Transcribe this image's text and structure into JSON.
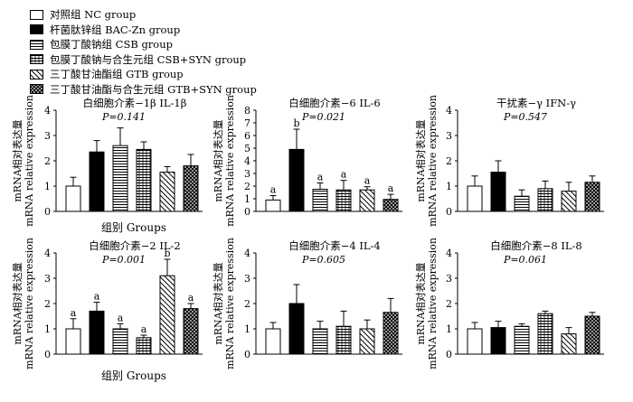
{
  "legend": [
    {
      "label": "对照组  NC group",
      "pattern": "white"
    },
    {
      "label": "杆菌肽锌组  BAC-Zn group",
      "pattern": "black"
    },
    {
      "label": "包膜丁酸钠组  CSB group",
      "pattern": "hlines"
    },
    {
      "label": "包膜丁酸钠与合生元组  CSB+SYN group",
      "pattern": "grid"
    },
    {
      "label": "三丁酸甘油酯组  GTB group",
      "pattern": "diag"
    },
    {
      "label": "三丁酸甘油酯与合生元组  GTB+SYN group",
      "pattern": "dots"
    }
  ],
  "chart_data": [
    {
      "type": "bar",
      "title": "白细胞介素−1β IL-1β",
      "pvalue": "P=0.141",
      "ylabel_cn": "mRNA相对表达量",
      "ylabel_en": "mRNA relative expression",
      "xlabel": "组别 Groups",
      "ylim": [
        0,
        4
      ],
      "ticks": [
        "0",
        "1",
        "2",
        "3",
        "4"
      ],
      "values": [
        1.0,
        2.35,
        2.6,
        2.45,
        1.55,
        1.8
      ],
      "errors": [
        0.35,
        0.45,
        0.7,
        0.3,
        0.22,
        0.45
      ],
      "letters": []
    },
    {
      "type": "bar",
      "title": "白细胞介素−6 IL-6",
      "pvalue": "P=0.021",
      "ylabel_cn": "mRNA相对表达量",
      "ylabel_en": "mRNA relative expression",
      "xlabel": "",
      "ylim": [
        0,
        8
      ],
      "ticks": [
        "0",
        "1",
        "2",
        "3",
        "4",
        "5",
        "6",
        "7",
        "8"
      ],
      "values": [
        0.9,
        4.9,
        1.75,
        1.7,
        1.7,
        0.95
      ],
      "errors": [
        0.35,
        1.6,
        0.5,
        0.75,
        0.25,
        0.4
      ],
      "letters": [
        "a",
        "b",
        "a",
        "a",
        "a",
        "a"
      ]
    },
    {
      "type": "bar",
      "title": "干扰素−γ IFN-γ",
      "pvalue": "P=0.547",
      "ylabel_cn": "mRNA相对表达量",
      "ylabel_en": "mRNA relative expression",
      "xlabel": "",
      "ylim": [
        0,
        4
      ],
      "ticks": [
        "0",
        "1",
        "2",
        "3",
        "4"
      ],
      "values": [
        1.0,
        1.55,
        0.6,
        0.9,
        0.8,
        1.15
      ],
      "errors": [
        0.4,
        0.45,
        0.25,
        0.3,
        0.35,
        0.25
      ],
      "letters": []
    },
    {
      "type": "bar",
      "title": "白细胞介素−2 IL-2",
      "pvalue": "P=0.001",
      "ylabel_cn": "mRNA相对表达量",
      "ylabel_en": "mRNA relative expression",
      "xlabel": "组别 Groups",
      "ylim": [
        0,
        4
      ],
      "ticks": [
        "0",
        "1",
        "2",
        "3",
        "4"
      ],
      "values": [
        1.0,
        1.7,
        1.0,
        0.65,
        3.1,
        1.8
      ],
      "errors": [
        0.4,
        0.35,
        0.2,
        0.1,
        0.65,
        0.2
      ],
      "letters": [
        "a",
        "a",
        "a",
        "a",
        "b",
        "a"
      ]
    },
    {
      "type": "bar",
      "title": "白细胞介素−4 IL-4",
      "pvalue": "P=0.605",
      "ylabel_cn": "mRNA相对表达量",
      "ylabel_en": "mRNA relative expression",
      "xlabel": "",
      "ylim": [
        0,
        4
      ],
      "ticks": [
        "0",
        "1",
        "2",
        "3",
        "4"
      ],
      "values": [
        1.0,
        2.0,
        1.0,
        1.1,
        1.0,
        1.65
      ],
      "errors": [
        0.25,
        0.75,
        0.3,
        0.6,
        0.35,
        0.55
      ],
      "letters": []
    },
    {
      "type": "bar",
      "title": "白细胞介素−8 IL-8",
      "pvalue": "P=0.061",
      "ylabel_cn": "mRNA相对表达量",
      "ylabel_en": "mRNA relative expression",
      "xlabel": "",
      "ylim": [
        0,
        4
      ],
      "ticks": [
        "0",
        "1",
        "2",
        "3",
        "4"
      ],
      "values": [
        1.0,
        1.05,
        1.1,
        1.6,
        0.8,
        1.5
      ],
      "errors": [
        0.25,
        0.25,
        0.1,
        0.1,
        0.25,
        0.15
      ],
      "letters": []
    }
  ]
}
